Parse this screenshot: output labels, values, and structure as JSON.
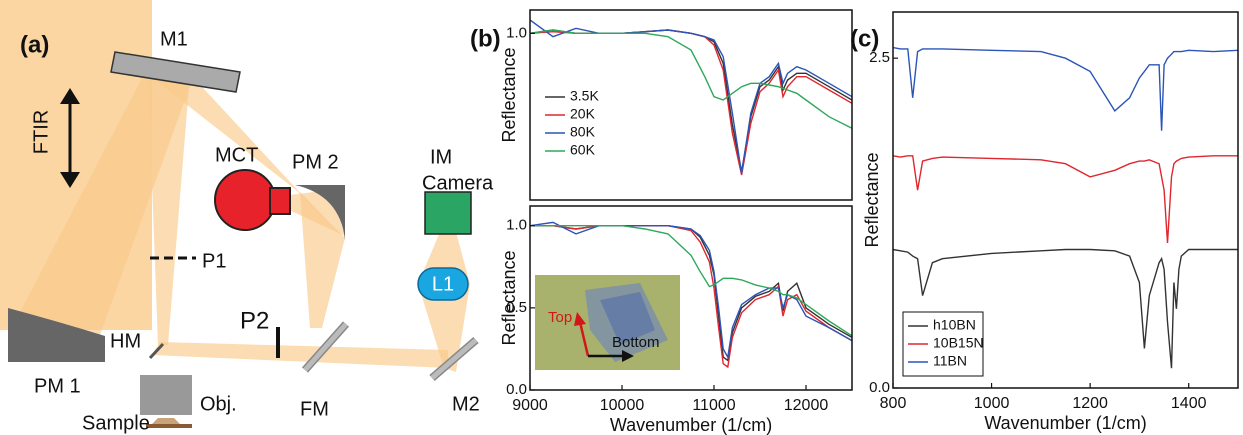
{
  "diagram": {
    "panel_label": "(a)",
    "labels": {
      "m1": "M1",
      "ftir": "FTIR",
      "mct": "MCT",
      "pm2": "PM 2",
      "im": "IM",
      "camera": "Camera",
      "p1": "P1",
      "p2": "P2",
      "l1": "L1",
      "hm": "HM",
      "pm1": "PM 1",
      "obj": "Obj.",
      "fm": "FM",
      "m2": "M2",
      "sample": "Sample"
    }
  },
  "chart_data": [
    {
      "type": "line",
      "panel_label": "(b)",
      "ylabel": "Reflectance",
      "legend": "center left",
      "x": [
        9000,
        9250,
        9500,
        9750,
        10000,
        10250,
        10500,
        10750,
        10900,
        11000,
        11100,
        11200,
        11300,
        11400,
        11500,
        11600,
        11700,
        11750,
        11800,
        11900,
        12000,
        12250,
        12500
      ],
      "series": [
        {
          "name": "3.5K",
          "color": "#333333",
          "values": [
            1.0,
            1.02,
            1.0,
            1.0,
            1.0,
            1.01,
            1.02,
            1.0,
            0.98,
            0.95,
            0.82,
            0.45,
            0.17,
            0.5,
            0.68,
            0.72,
            0.8,
            0.66,
            0.72,
            0.76,
            0.76,
            0.68,
            0.6
          ]
        },
        {
          "name": "20K",
          "color": "#e0262e",
          "values": [
            1.0,
            1.01,
            1.0,
            1.0,
            1.0,
            1.01,
            1.02,
            1.0,
            0.98,
            0.93,
            0.78,
            0.4,
            0.15,
            0.46,
            0.65,
            0.7,
            0.78,
            0.62,
            0.68,
            0.74,
            0.74,
            0.66,
            0.58
          ]
        },
        {
          "name": "80K",
          "color": "#2b55b8",
          "values": [
            1.08,
            0.98,
            1.03,
            1.0,
            1.0,
            1.01,
            1.02,
            1.0,
            0.98,
            0.96,
            0.86,
            0.52,
            0.16,
            0.52,
            0.7,
            0.74,
            0.82,
            0.7,
            0.76,
            0.8,
            0.78,
            0.7,
            0.62
          ]
        },
        {
          "name": "60K",
          "color": "#2ea85a",
          "values": [
            1.0,
            1.02,
            1.0,
            1.0,
            1.0,
            1.0,
            0.98,
            0.9,
            0.74,
            0.62,
            0.6,
            0.64,
            0.68,
            0.7,
            0.7,
            0.69,
            0.68,
            0.67,
            0.66,
            0.64,
            0.6,
            0.5,
            0.43
          ]
        }
      ],
      "xlim": [
        9000,
        12500
      ],
      "ylim": [
        0,
        1.14
      ],
      "yticks": [
        {
          "value": 1,
          "label": "1.0"
        }
      ]
    },
    {
      "type": "line",
      "ylabel": "Reflectance",
      "xlabel": "Wavenumber (1/cm)",
      "annotations": [
        "Top",
        "Bottom"
      ],
      "x": [
        9000,
        9250,
        9500,
        9750,
        10000,
        10250,
        10500,
        10750,
        10850,
        10950,
        11000,
        11050,
        11100,
        11150,
        11200,
        11300,
        11450,
        11600,
        11700,
        11750,
        11800,
        11900,
        12000,
        12250,
        12500
      ],
      "series": [
        {
          "color": "#333333",
          "values": [
            1.0,
            1.0,
            0.98,
            1.0,
            1.0,
            1.0,
            1.0,
            0.98,
            0.93,
            0.82,
            0.7,
            0.45,
            0.2,
            0.18,
            0.35,
            0.5,
            0.57,
            0.6,
            0.65,
            0.48,
            0.6,
            0.65,
            0.5,
            0.4,
            0.32
          ]
        },
        {
          "color": "#e0262e",
          "values": [
            1.0,
            1.0,
            0.98,
            1.0,
            1.0,
            1.0,
            1.0,
            0.97,
            0.9,
            0.78,
            0.62,
            0.38,
            0.16,
            0.14,
            0.32,
            0.47,
            0.55,
            0.58,
            0.63,
            0.45,
            0.55,
            0.58,
            0.48,
            0.38,
            0.3
          ]
        },
        {
          "color": "#2b55b8",
          "values": [
            1.0,
            1.02,
            0.95,
            1.0,
            1.0,
            1.0,
            1.0,
            0.98,
            0.94,
            0.85,
            0.72,
            0.5,
            0.25,
            0.2,
            0.38,
            0.52,
            0.58,
            0.62,
            0.62,
            0.5,
            0.58,
            0.55,
            0.45,
            0.38,
            0.3
          ]
        },
        {
          "color": "#2ea85a",
          "values": [
            1.0,
            1.0,
            1.0,
            1.0,
            1.0,
            0.98,
            0.95,
            0.82,
            0.72,
            0.63,
            0.64,
            0.66,
            0.68,
            0.68,
            0.68,
            0.67,
            0.64,
            0.62,
            0.6,
            0.58,
            0.58,
            0.56,
            0.52,
            0.42,
            0.33
          ]
        }
      ],
      "xlim": [
        9000,
        12500
      ],
      "ylim": [
        0,
        1.12
      ],
      "xticks": [
        9000,
        10000,
        11000,
        12000
      ],
      "yticks": [
        {
          "value": 0,
          "label": "0.0"
        },
        {
          "value": 0.5,
          "label": "0.5"
        },
        {
          "value": 1,
          "label": "1.0"
        }
      ]
    },
    {
      "type": "line",
      "panel_label": "(c)",
      "ylabel": "Reflectance",
      "xlabel": "Wavenumber (1/cm)",
      "legend": "lower left",
      "legend_frame": true,
      "x": [
        800,
        815,
        830,
        840,
        850,
        860,
        880,
        900,
        1000,
        1100,
        1150,
        1200,
        1250,
        1280,
        1300,
        1310,
        1320,
        1340,
        1345,
        1350,
        1357,
        1365,
        1370,
        1375,
        1380,
        1385,
        1400,
        1450,
        1500
      ],
      "series": [
        {
          "name": "h10BN",
          "color": "#333333",
          "values": [
            1.05,
            1.04,
            1.03,
            1.0,
            0.98,
            0.7,
            0.95,
            0.98,
            1.02,
            1.04,
            1.05,
            1.05,
            1.04,
            1.0,
            0.8,
            0.3,
            0.7,
            0.95,
            0.98,
            0.9,
            0.5,
            0.15,
            0.8,
            0.6,
            0.9,
            1.0,
            1.05,
            1.05,
            1.05
          ]
        },
        {
          "name": "10B15N",
          "color": "#e0262e",
          "values": [
            1.76,
            1.75,
            1.76,
            1.76,
            1.5,
            1.72,
            1.74,
            1.75,
            1.74,
            1.73,
            1.7,
            1.6,
            1.65,
            1.7,
            1.72,
            1.72,
            1.73,
            1.7,
            1.6,
            1.5,
            1.1,
            1.6,
            1.7,
            1.72,
            1.73,
            1.74,
            1.75,
            1.76,
            1.76
          ]
        },
        {
          "name": "11BN",
          "color": "#2b55b8",
          "values": [
            2.58,
            2.57,
            2.57,
            2.2,
            2.55,
            2.57,
            2.57,
            2.57,
            2.56,
            2.55,
            2.5,
            2.4,
            2.1,
            2.2,
            2.35,
            2.4,
            2.45,
            2.45,
            1.95,
            2.45,
            2.5,
            2.53,
            2.55,
            2.55,
            2.55,
            2.55,
            2.56,
            2.55,
            2.56
          ]
        }
      ],
      "xlim": [
        800,
        1500
      ],
      "ylim": [
        0,
        2.85
      ],
      "xticks": [
        800,
        1000,
        1200,
        1400
      ],
      "yticks": [
        {
          "value": 0,
          "label": "0.0"
        },
        {
          "value": 2.5,
          "label": "2.5"
        }
      ]
    }
  ]
}
